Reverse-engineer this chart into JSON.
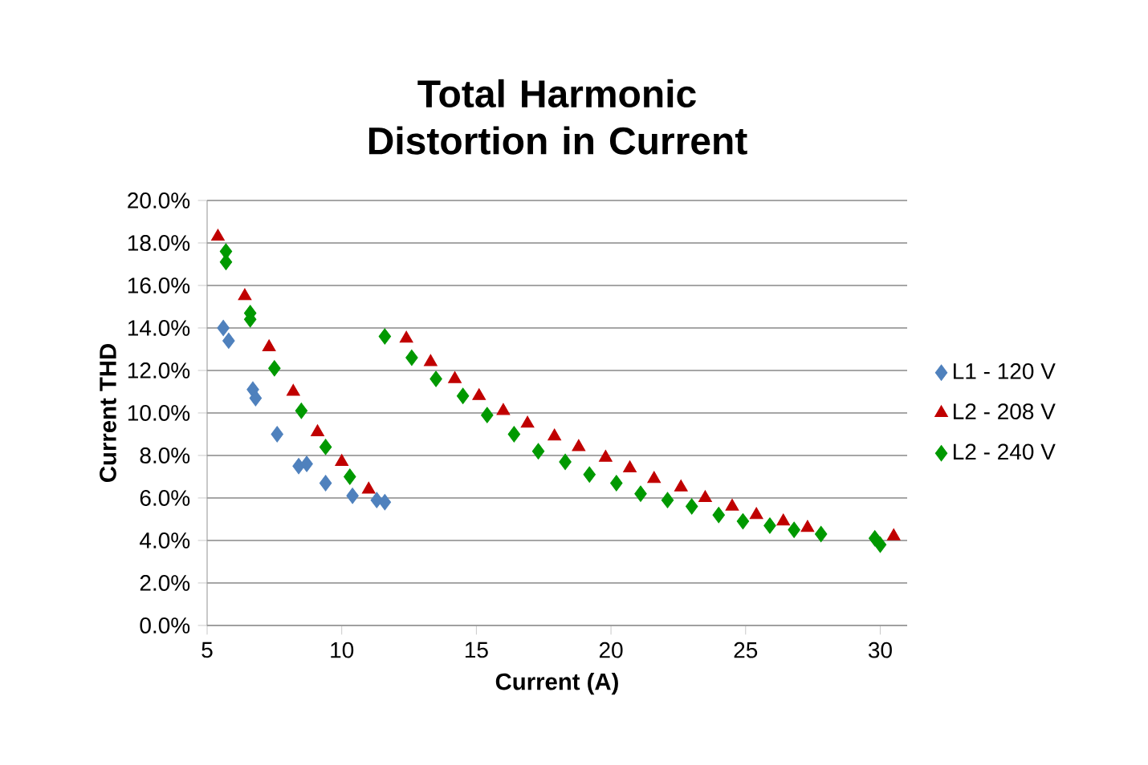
{
  "chart_data": {
    "type": "scatter",
    "title": "Total Harmonic Distortion in Current",
    "xlabel": "Current (A)",
    "ylabel": "Current THD",
    "xlim": [
      5,
      31
    ],
    "xticks": [
      5,
      10,
      15,
      20,
      25,
      30
    ],
    "ylim": [
      0,
      20
    ],
    "yticks": [
      {
        "value": 0,
        "label": "0.0%"
      },
      {
        "value": 2,
        "label": "2.0%"
      },
      {
        "value": 4,
        "label": "4.0%"
      },
      {
        "value": 6,
        "label": "6.0%"
      },
      {
        "value": 8,
        "label": "8.0%"
      },
      {
        "value": 10,
        "label": "10.0%"
      },
      {
        "value": 12,
        "label": "12.0%"
      },
      {
        "value": 14,
        "label": "14.0%"
      },
      {
        "value": 16,
        "label": "16.0%"
      },
      {
        "value": 18,
        "label": "18.0%"
      },
      {
        "value": 20,
        "label": "20.0%"
      }
    ],
    "grid": "y",
    "legend": "right",
    "series": [
      {
        "name": "L1 - 120 V",
        "color": "#4f81bd",
        "marker": "diamond",
        "x": [
          5.6,
          5.8,
          6.7,
          6.8,
          7.6,
          8.4,
          8.7,
          9.4,
          10.4,
          11.3,
          11.6
        ],
        "values": [
          14.0,
          13.4,
          11.1,
          10.7,
          9.0,
          7.5,
          7.6,
          6.7,
          6.1,
          5.9,
          5.8
        ]
      },
      {
        "name": "L2 - 208 V",
        "color": "#c00000",
        "marker": "triangle",
        "x": [
          5.4,
          6.4,
          7.3,
          8.2,
          9.1,
          10.0,
          11.0,
          12.4,
          13.3,
          14.2,
          15.1,
          16.0,
          16.9,
          17.9,
          18.8,
          19.8,
          20.7,
          21.6,
          22.6,
          23.5,
          24.5,
          25.4,
          26.4,
          27.3,
          30.5
        ],
        "values": [
          18.3,
          15.5,
          13.1,
          11.0,
          9.1,
          7.7,
          6.4,
          13.5,
          12.4,
          11.6,
          10.8,
          10.1,
          9.5,
          8.9,
          8.4,
          7.9,
          7.4,
          6.9,
          6.5,
          6.0,
          5.6,
          5.2,
          4.9,
          4.6,
          4.2
        ]
      },
      {
        "name": "L2 - 240 V",
        "color": "#009900",
        "marker": "diamond",
        "x": [
          5.7,
          5.7,
          6.6,
          6.6,
          7.5,
          8.5,
          9.4,
          10.3,
          11.6,
          12.6,
          13.5,
          14.5,
          15.4,
          16.4,
          17.3,
          18.3,
          19.2,
          20.2,
          21.1,
          22.1,
          23.0,
          24.0,
          24.9,
          25.9,
          26.8,
          27.8,
          29.8,
          30.0
        ],
        "values": [
          17.6,
          17.1,
          14.7,
          14.4,
          12.1,
          10.1,
          8.4,
          7.0,
          13.6,
          12.6,
          11.6,
          10.8,
          9.9,
          9.0,
          8.2,
          7.7,
          7.1,
          6.7,
          6.2,
          5.9,
          5.6,
          5.2,
          4.9,
          4.7,
          4.5,
          4.3,
          4.1,
          3.8
        ]
      }
    ]
  }
}
